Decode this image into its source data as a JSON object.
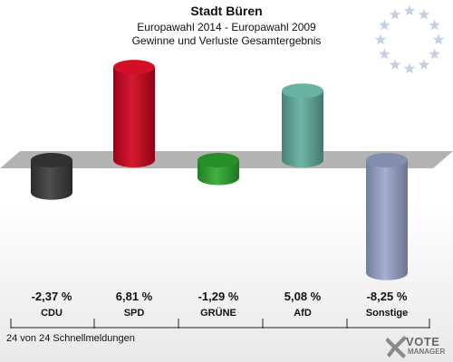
{
  "header": {
    "title": "Stadt Büren",
    "subtitle": "Europawahl 2014 - Europawahl 2009",
    "subtitle2": "Gewinne und Verluste Gesamtergebnis"
  },
  "footer": {
    "note": "24 von 24 Schnellmeldungen"
  },
  "logo": {
    "line1": "VOTE",
    "line2": "MANAGER",
    "icon": "checkmark-x-icon"
  },
  "emblem": {
    "icon": "eu-stars-icon",
    "color": "#c6cfe0"
  },
  "chart_data": {
    "type": "bar",
    "title": "",
    "categories": [
      "CDU",
      "SPD",
      "GRÜNE",
      "AfD",
      "Sonstige"
    ],
    "values": [
      -2.37,
      6.81,
      -1.29,
      5.08,
      -8.25
    ],
    "value_labels": [
      "-2,37 %",
      "6,81 %",
      "-1,29 %",
      "5,08 %",
      "-8,25 %"
    ],
    "colors": [
      "#3a3a3a",
      "#d0021b",
      "#2ea82e",
      "#5fae9c",
      "#9aa6cc"
    ],
    "ylim": [
      -8.25,
      6.81
    ],
    "grid": false,
    "legend": "none"
  }
}
